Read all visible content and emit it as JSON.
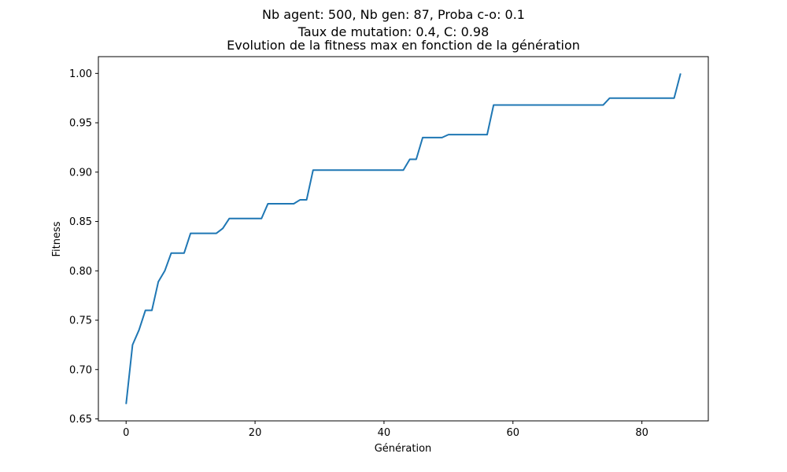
{
  "figure": {
    "suptitle_line1": "Nb agent: 500, Nb gen: 87, Proba c-o: 0.1",
    "suptitle_line2": "Taux de mutation: 0.4, C: 0.98"
  },
  "chart_data": {
    "type": "line",
    "title": "Evolution de la fitness max en fonction de la génération",
    "xlabel": "Génération",
    "ylabel": "Fitness",
    "xlim": [
      -4.3,
      90.3
    ],
    "ylim": [
      0.648,
      1.017
    ],
    "xticks": [
      0,
      20,
      40,
      60,
      80
    ],
    "yticks": [
      0.65,
      0.7,
      0.75,
      0.8,
      0.85,
      0.9,
      0.95,
      1.0
    ],
    "ytick_labels": [
      "0.65",
      "0.70",
      "0.75",
      "0.80",
      "0.85",
      "0.90",
      "0.95",
      "1.00"
    ],
    "grid": false,
    "series": [
      {
        "color": "#1f77b4",
        "x": [
          0,
          1,
          2,
          3,
          4,
          5,
          6,
          7,
          8,
          9,
          10,
          11,
          12,
          13,
          14,
          15,
          16,
          17,
          18,
          19,
          20,
          21,
          22,
          23,
          24,
          25,
          26,
          27,
          28,
          29,
          30,
          31,
          32,
          33,
          34,
          35,
          36,
          37,
          38,
          39,
          40,
          41,
          42,
          43,
          44,
          45,
          46,
          47,
          48,
          49,
          50,
          51,
          52,
          53,
          54,
          55,
          56,
          57,
          58,
          59,
          60,
          61,
          62,
          63,
          64,
          65,
          66,
          67,
          68,
          69,
          70,
          71,
          72,
          73,
          74,
          75,
          76,
          77,
          78,
          79,
          80,
          81,
          82,
          83,
          84,
          85,
          86
        ],
        "y": [
          0.665,
          0.725,
          0.74,
          0.76,
          0.76,
          0.789,
          0.8,
          0.818,
          0.818,
          0.818,
          0.838,
          0.838,
          0.838,
          0.838,
          0.838,
          0.843,
          0.853,
          0.853,
          0.853,
          0.853,
          0.853,
          0.853,
          0.868,
          0.868,
          0.868,
          0.868,
          0.868,
          0.872,
          0.872,
          0.902,
          0.902,
          0.902,
          0.902,
          0.902,
          0.902,
          0.902,
          0.902,
          0.902,
          0.902,
          0.902,
          0.902,
          0.902,
          0.902,
          0.902,
          0.913,
          0.913,
          0.935,
          0.935,
          0.935,
          0.935,
          0.938,
          0.938,
          0.938,
          0.938,
          0.938,
          0.938,
          0.938,
          0.968,
          0.968,
          0.968,
          0.968,
          0.968,
          0.968,
          0.968,
          0.968,
          0.968,
          0.968,
          0.968,
          0.968,
          0.968,
          0.968,
          0.968,
          0.968,
          0.968,
          0.968,
          0.975,
          0.975,
          0.975,
          0.975,
          0.975,
          0.975,
          0.975,
          0.975,
          0.975,
          0.975,
          0.975,
          1.0
        ]
      }
    ]
  }
}
